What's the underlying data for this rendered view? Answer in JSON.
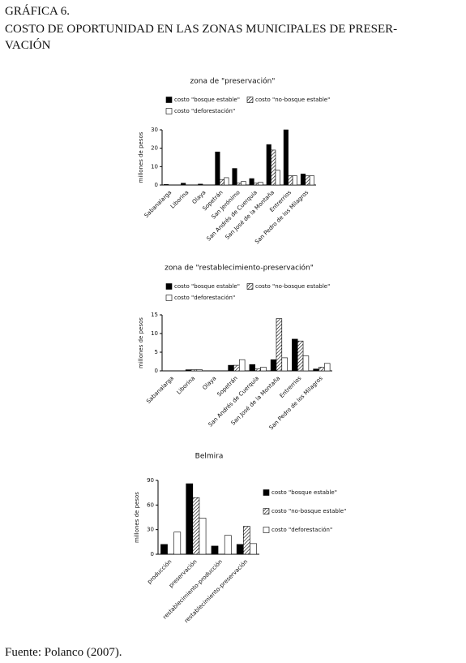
{
  "header": {
    "label": "GRÁFICA 6.",
    "title_lines": [
      "COSTO DE OPORTUNIDAD EN LAS ZONAS MUNICIPALES DE PRESER-",
      "VACIÓN"
    ]
  },
  "footer": "Fuente: Polanco (2007).",
  "chart_data": [
    {
      "type": "bar",
      "title": "zona de \"preservación\"",
      "y_label": "millones de pesos",
      "categories": [
        "Sabanalarga",
        "Liborina",
        "Olaya",
        "Sopetrán",
        "San Jerónimo",
        "San Andrés de Cuerquia",
        "San José de la Montaña",
        "Entrerrios",
        "San Pedro de los Milagros"
      ],
      "series": [
        {
          "name": "costo \"bosque estable\"",
          "color": "#000000",
          "values": [
            0.3,
            1,
            0.5,
            18,
            9,
            3.5,
            22,
            30,
            6
          ]
        },
        {
          "name": "costo \"no-bosque estable\"",
          "color": "#ffffff",
          "pattern": "diagonal",
          "values": [
            0,
            0,
            0,
            3,
            1,
            1,
            19,
            5,
            5
          ]
        },
        {
          "name": "costo \"deforestación\"",
          "color": "#ffffff",
          "values": [
            0,
            0,
            0,
            4,
            2,
            1.5,
            8,
            5,
            5
          ]
        }
      ],
      "ylim": [
        0,
        30
      ],
      "yticks": [
        0,
        10,
        20,
        30
      ],
      "grid": false
    },
    {
      "type": "bar",
      "title": "zona de \"restablecimiento-preservación\"",
      "y_label": "millones de pesos",
      "categories": [
        "Sabanalarga",
        "Liborina",
        "Olaya",
        "Sopetrán",
        "San Andrés de Cuerquia",
        "San José de la Montaña",
        "Entrerrios",
        "San Pedro de los Milagros"
      ],
      "series": [
        {
          "name": "costo \"bosque estable\"",
          "color": "#000000",
          "values": [
            0,
            0.3,
            0,
            1.5,
            1.7,
            3,
            8.5,
            0.5
          ]
        },
        {
          "name": "costo \"no-bosque estable\"",
          "color": "#ffffff",
          "pattern": "diagonal",
          "values": [
            0,
            0.3,
            0,
            1.5,
            0.5,
            14,
            8,
            1
          ]
        },
        {
          "name": "costo \"deforestación\"",
          "color": "#ffffff",
          "values": [
            0,
            0.3,
            0,
            3,
            1,
            3.5,
            4,
            2
          ]
        }
      ],
      "ylim": [
        0,
        15
      ],
      "yticks": [
        0,
        5,
        10,
        15
      ],
      "grid": false
    },
    {
      "type": "bar",
      "title": "Belmira",
      "y_label": "millones de pesos",
      "categories": [
        "producción",
        "preservación",
        "restablecimiento-producción",
        "restablecimiento-preservación"
      ],
      "series": [
        {
          "name": "costo \"bosque estable\"",
          "color": "#000000",
          "values": [
            12,
            86,
            10,
            12
          ]
        },
        {
          "name": "costo \"no-bosque estable\"",
          "color": "#ffffff",
          "pattern": "diagonal",
          "values": [
            0,
            69,
            0,
            34
          ]
        },
        {
          "name": "costo \"deforestación\"",
          "color": "#ffffff",
          "values": [
            27,
            44,
            23,
            13
          ]
        }
      ],
      "ylim": [
        0,
        90
      ],
      "yticks": [
        0,
        30,
        60,
        90
      ],
      "grid": false
    }
  ]
}
